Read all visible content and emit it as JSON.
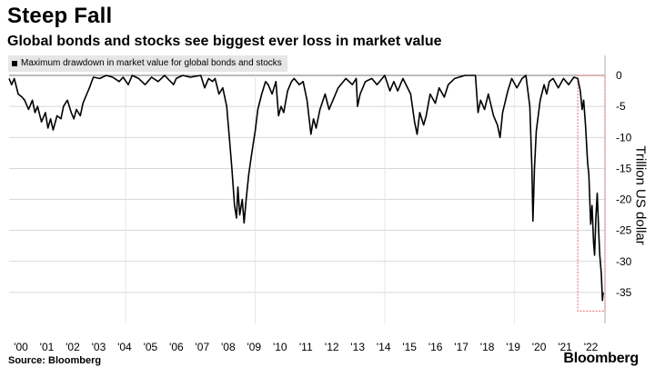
{
  "header": {
    "title": "Steep Fall",
    "subtitle": "Global bonds and stocks see biggest ever loss in market value"
  },
  "footer": {
    "source": "Source: Bloomberg",
    "brand": "Bloomberg"
  },
  "chart_data": {
    "type": "line",
    "ylabel": "Trillion US dollar",
    "ylim": [
      -40,
      0
    ],
    "yticks": [
      0,
      -5,
      -10,
      -15,
      -20,
      -25,
      -30,
      -35
    ],
    "xlim": [
      2000,
      2023
    ],
    "xtick_labels": [
      "'00",
      "'01",
      "'02",
      "'03",
      "'04",
      "'05",
      "'06",
      "'07",
      "'08",
      "'09",
      "'10",
      "'11",
      "'12",
      "'13",
      "'14",
      "'15",
      "'16",
      "'17",
      "'18",
      "'19",
      "'20",
      "'21",
      "'22"
    ],
    "grid": "horizontal",
    "legend_position": "top-left",
    "colors": {
      "line": "#000000",
      "grid": "#cccccc",
      "highlight": "#e8686f"
    },
    "highlight": {
      "x0": 2021.95,
      "x1": 2023.0,
      "y0": 0,
      "y1": -38
    },
    "series": [
      {
        "name": "Maximum drawdown in market value for global bonds and stocks",
        "points": [
          [
            2000.0,
            -0.5
          ],
          [
            2000.1,
            -1.5
          ],
          [
            2000.2,
            -0.5
          ],
          [
            2000.35,
            -3.0
          ],
          [
            2000.5,
            -3.5
          ],
          [
            2000.6,
            -4.0
          ],
          [
            2000.75,
            -5.5
          ],
          [
            2000.9,
            -4.0
          ],
          [
            2001.0,
            -6.0
          ],
          [
            2001.1,
            -5.0
          ],
          [
            2001.25,
            -7.5
          ],
          [
            2001.4,
            -6.0
          ],
          [
            2001.5,
            -8.5
          ],
          [
            2001.6,
            -7.0
          ],
          [
            2001.7,
            -8.8
          ],
          [
            2001.85,
            -6.5
          ],
          [
            2002.0,
            -7.0
          ],
          [
            2002.1,
            -5.0
          ],
          [
            2002.25,
            -4.0
          ],
          [
            2002.4,
            -6.0
          ],
          [
            2002.5,
            -7.0
          ],
          [
            2002.6,
            -5.5
          ],
          [
            2002.75,
            -6.5
          ],
          [
            2002.85,
            -4.5
          ],
          [
            2003.0,
            -3.0
          ],
          [
            2003.1,
            -2.0
          ],
          [
            2003.25,
            -0.3
          ],
          [
            2003.5,
            -0.5
          ],
          [
            2003.75,
            0
          ],
          [
            2004.0,
            -0.3
          ],
          [
            2004.25,
            -1.0
          ],
          [
            2004.4,
            -0.3
          ],
          [
            2004.6,
            -1.5
          ],
          [
            2004.75,
            0
          ],
          [
            2005.0,
            -0.5
          ],
          [
            2005.25,
            -1.5
          ],
          [
            2005.5,
            -0.3
          ],
          [
            2005.75,
            -1.0
          ],
          [
            2006.0,
            0
          ],
          [
            2006.35,
            -1.5
          ],
          [
            2006.45,
            -0.5
          ],
          [
            2006.7,
            0
          ],
          [
            2007.0,
            -0.3
          ],
          [
            2007.4,
            0
          ],
          [
            2007.55,
            -2.0
          ],
          [
            2007.7,
            -0.5
          ],
          [
            2007.85,
            -1.0
          ],
          [
            2007.95,
            -0.5
          ],
          [
            2008.1,
            -3.0
          ],
          [
            2008.25,
            -2.0
          ],
          [
            2008.4,
            -5.0
          ],
          [
            2008.5,
            -10.0
          ],
          [
            2008.6,
            -15.0
          ],
          [
            2008.7,
            -21.0
          ],
          [
            2008.78,
            -23.0
          ],
          [
            2008.83,
            -18.0
          ],
          [
            2008.9,
            -22.5
          ],
          [
            2009.0,
            -20.0
          ],
          [
            2009.07,
            -23.8
          ],
          [
            2009.15,
            -20.0
          ],
          [
            2009.25,
            -16.0
          ],
          [
            2009.35,
            -13.0
          ],
          [
            2009.5,
            -9.0
          ],
          [
            2009.6,
            -5.5
          ],
          [
            2009.75,
            -3.0
          ],
          [
            2009.9,
            -1.0
          ],
          [
            2010.0,
            -1.5
          ],
          [
            2010.15,
            -3.0
          ],
          [
            2010.3,
            -1.0
          ],
          [
            2010.4,
            -6.5
          ],
          [
            2010.5,
            -5.0
          ],
          [
            2010.6,
            -6.0
          ],
          [
            2010.75,
            -2.5
          ],
          [
            2010.9,
            -1.0
          ],
          [
            2011.0,
            -0.5
          ],
          [
            2011.2,
            -1.5
          ],
          [
            2011.35,
            -1.0
          ],
          [
            2011.5,
            -4.0
          ],
          [
            2011.65,
            -9.5
          ],
          [
            2011.75,
            -7.0
          ],
          [
            2011.85,
            -8.5
          ],
          [
            2012.0,
            -5.5
          ],
          [
            2012.2,
            -3.0
          ],
          [
            2012.35,
            -5.5
          ],
          [
            2012.5,
            -4.0
          ],
          [
            2012.7,
            -2.0
          ],
          [
            2013.0,
            -0.5
          ],
          [
            2013.25,
            -1.5
          ],
          [
            2013.4,
            -0.5
          ],
          [
            2013.45,
            -5.0
          ],
          [
            2013.55,
            -3.0
          ],
          [
            2013.75,
            -1.0
          ],
          [
            2014.0,
            -0.5
          ],
          [
            2014.2,
            -1.5
          ],
          [
            2014.5,
            0
          ],
          [
            2014.7,
            -2.5
          ],
          [
            2014.85,
            -1.0
          ],
          [
            2015.0,
            -2.5
          ],
          [
            2015.2,
            -0.5
          ],
          [
            2015.5,
            -3.0
          ],
          [
            2015.65,
            -7.5
          ],
          [
            2015.75,
            -9.5
          ],
          [
            2015.85,
            -6.0
          ],
          [
            2016.0,
            -8.0
          ],
          [
            2016.1,
            -6.5
          ],
          [
            2016.25,
            -3.0
          ],
          [
            2016.45,
            -4.5
          ],
          [
            2016.6,
            -2.0
          ],
          [
            2016.8,
            -3.5
          ],
          [
            2016.95,
            -1.5
          ],
          [
            2017.2,
            -0.5
          ],
          [
            2017.6,
            0
          ],
          [
            2018.0,
            0
          ],
          [
            2018.1,
            -6.0
          ],
          [
            2018.2,
            -4.0
          ],
          [
            2018.35,
            -5.5
          ],
          [
            2018.5,
            -3.0
          ],
          [
            2018.7,
            -6.5
          ],
          [
            2018.85,
            -8.0
          ],
          [
            2018.95,
            -10.0
          ],
          [
            2019.05,
            -6.0
          ],
          [
            2019.25,
            -2.5
          ],
          [
            2019.4,
            -0.5
          ],
          [
            2019.6,
            -2.0
          ],
          [
            2019.8,
            -0.5
          ],
          [
            2019.95,
            0
          ],
          [
            2020.1,
            -5.0
          ],
          [
            2020.18,
            -15.0
          ],
          [
            2020.22,
            -23.5
          ],
          [
            2020.28,
            -15.0
          ],
          [
            2020.35,
            -9.0
          ],
          [
            2020.5,
            -4.0
          ],
          [
            2020.65,
            -1.5
          ],
          [
            2020.75,
            -3.0
          ],
          [
            2020.85,
            -1.0
          ],
          [
            2021.0,
            -0.5
          ],
          [
            2021.2,
            -2.0
          ],
          [
            2021.4,
            -0.5
          ],
          [
            2021.6,
            -1.5
          ],
          [
            2021.8,
            -0.3
          ],
          [
            2021.95,
            -0.5
          ],
          [
            2022.05,
            -2.5
          ],
          [
            2022.12,
            -5.5
          ],
          [
            2022.18,
            -4.0
          ],
          [
            2022.25,
            -8.0
          ],
          [
            2022.33,
            -14.0
          ],
          [
            2022.38,
            -16.0
          ],
          [
            2022.45,
            -24.0
          ],
          [
            2022.5,
            -21.0
          ],
          [
            2022.56,
            -27.0
          ],
          [
            2022.6,
            -29.0
          ],
          [
            2022.65,
            -23.0
          ],
          [
            2022.7,
            -19.0
          ],
          [
            2022.76,
            -25.5
          ],
          [
            2022.8,
            -29.0
          ],
          [
            2022.86,
            -32.0
          ],
          [
            2022.9,
            -36.3
          ],
          [
            2022.93,
            -35.0
          ]
        ]
      }
    ]
  }
}
